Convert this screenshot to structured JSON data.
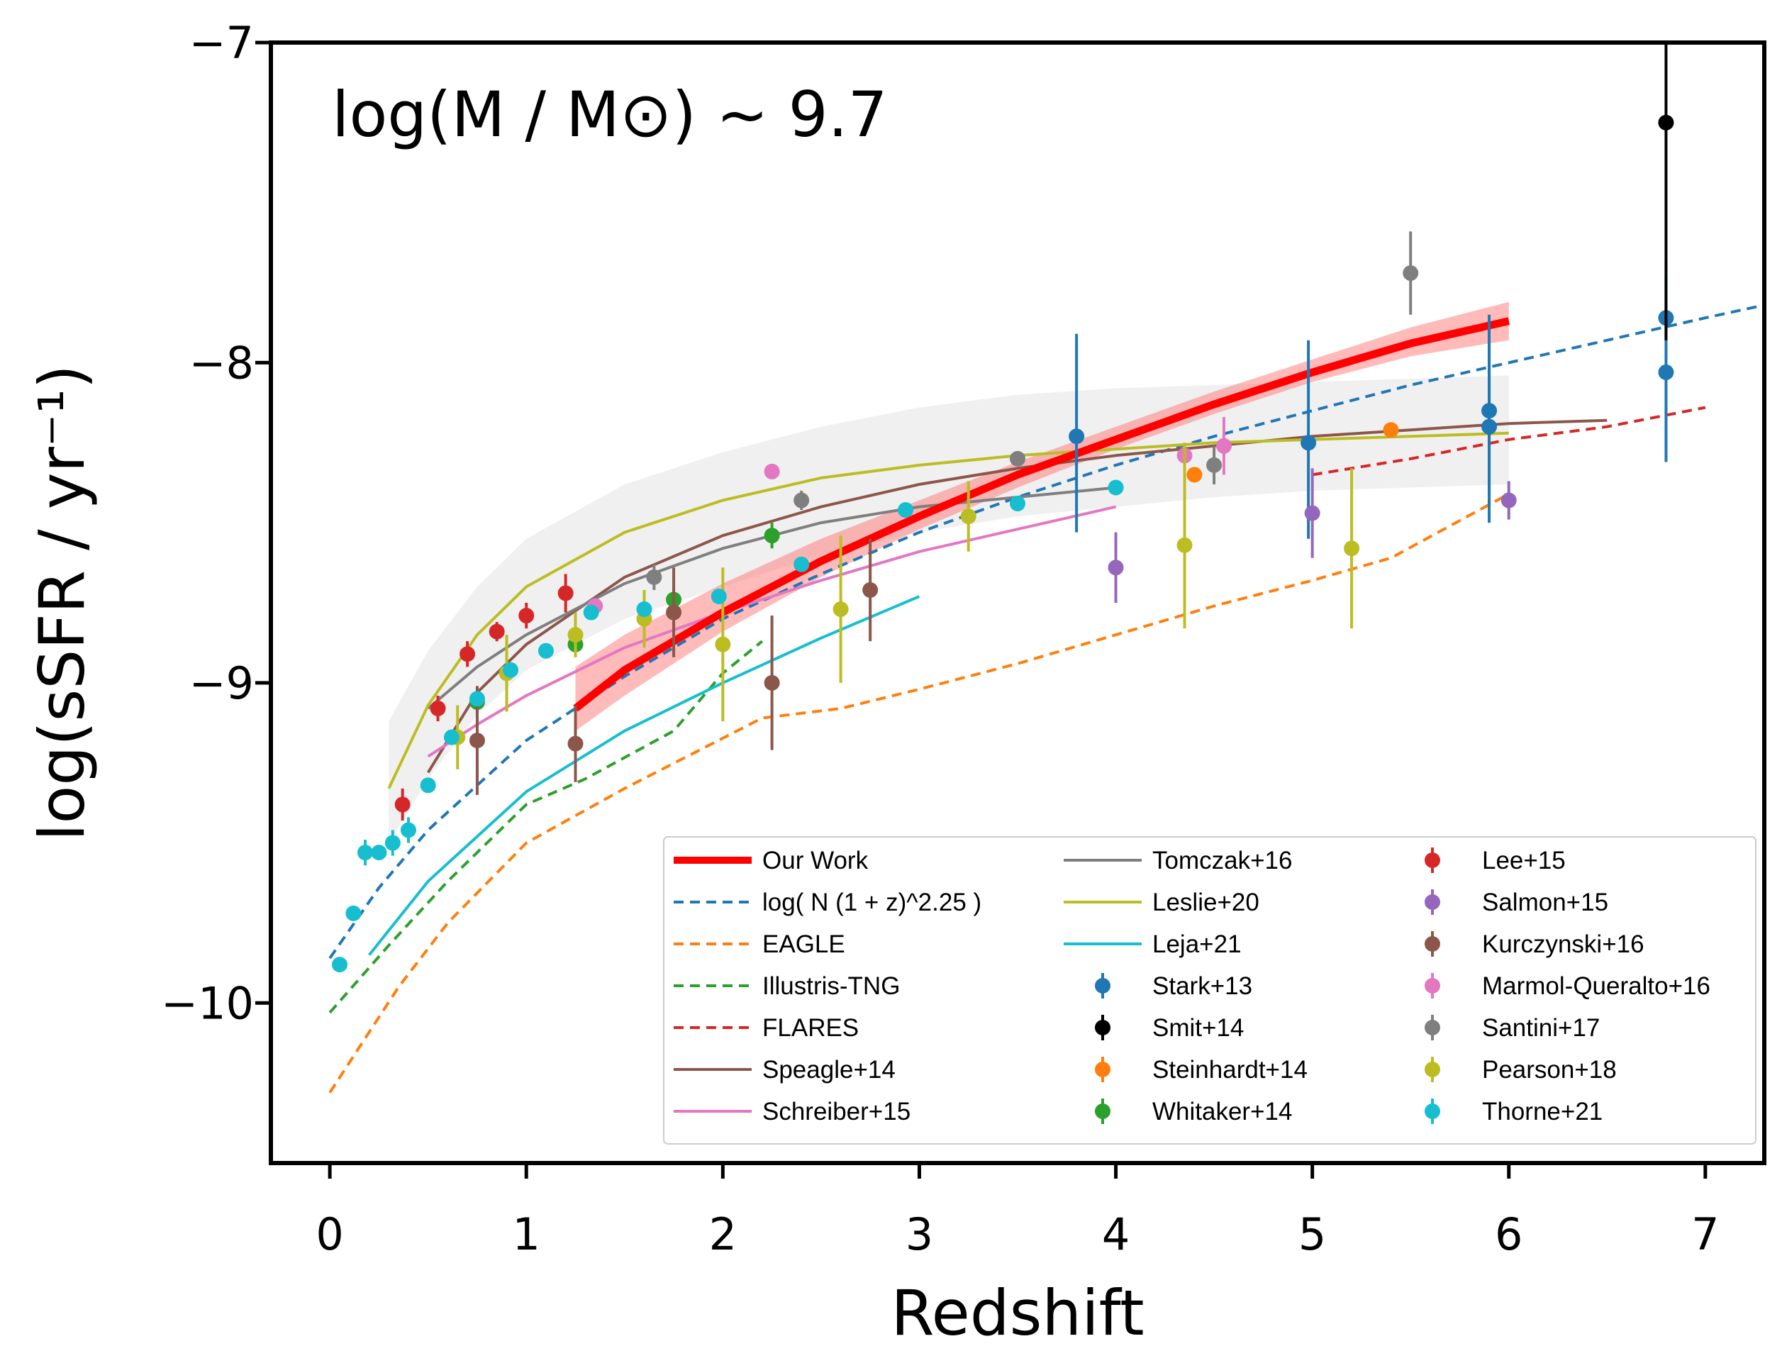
{
  "chart_data": {
    "type": "line",
    "annotation": "log(M / M⊙) ~ 9.7",
    "xlabel": "Redshift",
    "ylabel": "log(sSFR / yr⁻¹)",
    "xlim": [
      -0.3,
      7.3
    ],
    "ylim": [
      -10.5,
      -7.0
    ],
    "xticks": [
      0,
      1,
      2,
      3,
      4,
      5,
      6,
      7
    ],
    "yticks": [
      -10,
      -9,
      -8,
      -7
    ],
    "ytick_labels": [
      "−10",
      "−9",
      "−8",
      "−7"
    ],
    "grid": false,
    "legend_position": "lower-right",
    "bands": [
      {
        "name": "Speagle+14 scatter",
        "color": "#bbbbbb",
        "opacity": 0.22,
        "x": [
          0.3,
          0.5,
          0.75,
          1.0,
          1.5,
          2.0,
          2.5,
          3.0,
          3.5,
          4.0,
          4.5,
          5.0,
          5.5,
          6.0
        ],
        "upper": [
          -9.12,
          -8.9,
          -8.7,
          -8.55,
          -8.38,
          -8.28,
          -8.2,
          -8.14,
          -8.1,
          -8.08,
          -8.07,
          -8.06,
          -8.05,
          -8.04
        ],
        "lower": [
          -9.5,
          -9.3,
          -9.1,
          -8.96,
          -8.8,
          -8.7,
          -8.6,
          -8.53,
          -8.48,
          -8.45,
          -8.42,
          -8.4,
          -8.39,
          -8.38
        ]
      },
      {
        "name": "Our Work uncertainty",
        "color": "#ff6666",
        "opacity": 0.45,
        "x": [
          1.25,
          1.5,
          2.0,
          2.5,
          3.0,
          3.5,
          4.0,
          4.5,
          5.0,
          5.5,
          6.0
        ],
        "upper": [
          -8.95,
          -8.85,
          -8.69,
          -8.55,
          -8.43,
          -8.31,
          -8.2,
          -8.09,
          -7.99,
          -7.89,
          -7.81
        ],
        "lower": [
          -9.15,
          -9.04,
          -8.84,
          -8.67,
          -8.52,
          -8.39,
          -8.27,
          -8.16,
          -8.06,
          -7.98,
          -7.93
        ]
      }
    ],
    "lines": [
      {
        "name": "Our Work",
        "color": "#ff0000",
        "width": 11,
        "dash": "",
        "x": [
          1.25,
          1.5,
          2.0,
          2.5,
          3.0,
          3.5,
          4.0,
          4.5,
          5.0,
          5.5,
          6.0
        ],
        "y": [
          -9.08,
          -8.96,
          -8.78,
          -8.62,
          -8.48,
          -8.35,
          -8.24,
          -8.13,
          -8.03,
          -7.94,
          -7.87
        ]
      },
      {
        "name": "log( N (1 + z)^2.25 )",
        "color": "#1f77b4",
        "width": 4,
        "dash": "14,9",
        "x": [
          0.0,
          0.25,
          0.5,
          1.0,
          1.5,
          2.0,
          2.5,
          3.0,
          3.5,
          4.0,
          4.5,
          5.0,
          5.5,
          6.0,
          6.5,
          7.0,
          7.3
        ],
        "y": [
          -9.86,
          -9.64,
          -9.46,
          -9.18,
          -8.98,
          -8.8,
          -8.66,
          -8.53,
          -8.42,
          -8.32,
          -8.23,
          -8.15,
          -8.07,
          -8.0,
          -7.93,
          -7.86,
          -7.82
        ]
      },
      {
        "name": "EAGLE",
        "color": "#ff7f0e",
        "width": 4,
        "dash": "14,9",
        "x": [
          0.0,
          0.35,
          0.6,
          1.0,
          1.5,
          2.2,
          2.6,
          3.0,
          3.5,
          4.0,
          4.5,
          5.0,
          5.4,
          6.0
        ],
        "y": [
          -10.28,
          -9.95,
          -9.75,
          -9.5,
          -9.33,
          -9.11,
          -9.08,
          -9.02,
          -8.94,
          -8.85,
          -8.76,
          -8.68,
          -8.61,
          -8.41
        ]
      },
      {
        "name": "Illustris-TNG",
        "color": "#2ca02c",
        "width": 4,
        "dash": "14,9",
        "x": [
          0.0,
          0.3,
          0.6,
          1.0,
          1.3,
          1.75,
          2.0,
          2.2
        ],
        "y": [
          -10.03,
          -9.82,
          -9.62,
          -9.38,
          -9.3,
          -9.15,
          -8.97,
          -8.87
        ]
      },
      {
        "name": "FLARES",
        "color": "#d62728",
        "width": 4,
        "dash": "14,9",
        "x": [
          5.0,
          5.5,
          6.0,
          6.5,
          7.0
        ],
        "y": [
          -8.35,
          -8.3,
          -8.24,
          -8.2,
          -8.14
        ]
      },
      {
        "name": "Speagle+14",
        "color": "#8c564b",
        "width": 4,
        "dash": "",
        "x": [
          0.5,
          0.75,
          1.0,
          1.5,
          2.0,
          2.5,
          3.0,
          3.5,
          4.0,
          4.5,
          5.0,
          5.5,
          6.0,
          6.5
        ],
        "y": [
          -9.28,
          -9.03,
          -8.88,
          -8.67,
          -8.54,
          -8.45,
          -8.38,
          -8.33,
          -8.29,
          -8.26,
          -8.23,
          -8.21,
          -8.19,
          -8.18
        ]
      },
      {
        "name": "Schreiber+15",
        "color": "#e377c2",
        "width": 4,
        "dash": "",
        "x": [
          0.5,
          0.75,
          1.0,
          1.5,
          2.0,
          2.5,
          3.0,
          3.5,
          4.0
        ],
        "y": [
          -9.23,
          -9.13,
          -9.04,
          -8.89,
          -8.78,
          -8.68,
          -8.59,
          -8.52,
          -8.45
        ]
      },
      {
        "name": "Tomczak+16",
        "color": "#7f7f7f",
        "width": 4,
        "dash": "",
        "x": [
          0.5,
          0.75,
          1.0,
          1.5,
          2.0,
          2.5,
          3.0,
          3.5,
          4.0
        ],
        "y": [
          -9.08,
          -8.95,
          -8.85,
          -8.69,
          -8.58,
          -8.5,
          -8.45,
          -8.42,
          -8.39
        ]
      },
      {
        "name": "Leslie+20",
        "color": "#bcbd22",
        "width": 4,
        "dash": "",
        "x": [
          0.3,
          0.5,
          0.75,
          1.0,
          1.5,
          2.0,
          2.5,
          3.0,
          3.5,
          4.0,
          4.5,
          5.0,
          5.5,
          6.0
        ],
        "y": [
          -9.33,
          -9.07,
          -8.85,
          -8.7,
          -8.53,
          -8.43,
          -8.36,
          -8.32,
          -8.29,
          -8.27,
          -8.25,
          -8.24,
          -8.23,
          -8.22
        ]
      },
      {
        "name": "Leja+21",
        "color": "#17becf",
        "width": 4,
        "dash": "",
        "x": [
          0.2,
          0.5,
          1.0,
          1.5,
          2.0,
          2.5,
          3.0
        ],
        "y": [
          -9.85,
          -9.62,
          -9.34,
          -9.15,
          -9.0,
          -8.86,
          -8.73
        ]
      }
    ],
    "points": [
      {
        "name": "Stark+13",
        "color": "#1f77b4",
        "x": [
          3.8,
          4.98,
          5.9,
          5.9,
          6.8,
          6.8
        ],
        "y": [
          -8.23,
          -8.25,
          -8.15,
          -8.2,
          -8.03,
          -7.86
        ],
        "yerr_low": [
          0.3,
          0.3,
          0.3,
          0.3,
          0.28,
          0.06
        ],
        "yerr_high": [
          0.32,
          0.32,
          0.3,
          0.3,
          0.3,
          0.18
        ]
      },
      {
        "name": "Smit+14",
        "color": "#000000",
        "x": [
          6.8
        ],
        "y": [
          -7.25
        ],
        "yerr_low": [
          0.68
        ],
        "yerr_high": [
          0.25
        ]
      },
      {
        "name": "Steinhardt+14",
        "color": "#ff7f0e",
        "x": [
          4.4,
          5.4
        ],
        "y": [
          -8.35,
          -8.21
        ],
        "yerr_low": [
          0.02,
          0.02
        ],
        "yerr_high": [
          0.02,
          0.02
        ]
      },
      {
        "name": "Whitaker+14",
        "color": "#2ca02c",
        "x": [
          0.75,
          1.25,
          1.75,
          2.25
        ],
        "y": [
          -9.06,
          -8.88,
          -8.74,
          -8.54
        ],
        "yerr_low": [
          0.04,
          0.04,
          0.04,
          0.04
        ],
        "yerr_high": [
          0.04,
          0.04,
          0.04,
          0.04
        ]
      },
      {
        "name": "Lee+15",
        "color": "#d62728",
        "x": [
          0.37,
          0.55,
          0.7,
          0.85,
          1.0,
          1.2
        ],
        "y": [
          -9.38,
          -9.08,
          -8.91,
          -8.84,
          -8.79,
          -8.72
        ],
        "yerr_low": [
          0.05,
          0.04,
          0.04,
          0.03,
          0.04,
          0.06
        ],
        "yerr_high": [
          0.05,
          0.04,
          0.04,
          0.03,
          0.04,
          0.06
        ]
      },
      {
        "name": "Salmon+15",
        "color": "#9467bd",
        "x": [
          4.0,
          5.0,
          6.0
        ],
        "y": [
          -8.64,
          -8.47,
          -8.43
        ],
        "yerr_low": [
          0.11,
          0.14,
          0.06
        ],
        "yerr_high": [
          0.11,
          0.14,
          0.06
        ]
      },
      {
        "name": "Kurczynski+16",
        "color": "#8c564b",
        "x": [
          0.75,
          1.25,
          1.75,
          2.25,
          2.75
        ],
        "y": [
          -9.18,
          -9.19,
          -8.78,
          -9.0,
          -8.71
        ],
        "yerr_low": [
          0.17,
          0.12,
          0.14,
          0.21,
          0.16
        ],
        "yerr_high": [
          0.17,
          0.12,
          0.14,
          0.21,
          0.16
        ]
      },
      {
        "name": "Marmol-Queralto+16",
        "color": "#e377c2",
        "x": [
          1.35,
          2.25,
          4.35,
          4.55
        ],
        "y": [
          -8.76,
          -8.34,
          -8.29,
          -8.26
        ],
        "yerr_low": [
          0.02,
          0.02,
          0.03,
          0.09
        ],
        "yerr_high": [
          0.02,
          0.02,
          0.03,
          0.09
        ]
      },
      {
        "name": "Santini+17",
        "color": "#7f7f7f",
        "x": [
          1.65,
          2.4,
          3.5,
          4.5,
          5.5
        ],
        "y": [
          -8.67,
          -8.43,
          -8.3,
          -8.32,
          -7.72
        ],
        "yerr_low": [
          0.04,
          0.03,
          0.02,
          0.06,
          0.13
        ],
        "yerr_high": [
          0.04,
          0.03,
          0.02,
          0.06,
          0.13
        ]
      },
      {
        "name": "Pearson+18",
        "color": "#bcbd22",
        "x": [
          0.65,
          0.9,
          1.25,
          1.6,
          2.0,
          2.6,
          3.25,
          4.35,
          5.2
        ],
        "y": [
          -9.17,
          -8.97,
          -8.85,
          -8.8,
          -8.88,
          -8.77,
          -8.48,
          -8.57,
          -8.58
        ],
        "yerr_low": [
          0.1,
          0.12,
          0.07,
          0.09,
          0.24,
          0.23,
          0.11,
          0.26,
          0.25
        ],
        "yerr_high": [
          0.1,
          0.12,
          0.07,
          0.09,
          0.24,
          0.23,
          0.11,
          0.32,
          0.25
        ]
      },
      {
        "name": "Thorne+21",
        "color": "#17becf",
        "x": [
          0.05,
          0.12,
          0.18,
          0.25,
          0.32,
          0.4,
          0.5,
          0.62,
          0.75,
          0.92,
          1.1,
          1.33,
          1.6,
          1.98,
          2.4,
          2.93,
          3.5,
          4.0
        ],
        "y": [
          -9.88,
          -9.72,
          -9.53,
          -9.53,
          -9.5,
          -9.46,
          -9.32,
          -9.17,
          -9.05,
          -8.96,
          -8.9,
          -8.78,
          -8.77,
          -8.73,
          -8.63,
          -8.46,
          -8.44,
          -8.39
        ],
        "yerr_low": [
          0.02,
          0.02,
          0.04,
          0.02,
          0.04,
          0.04,
          0.02,
          0.02,
          0.02,
          0.02,
          0.02,
          0.02,
          0.02,
          0.02,
          0.02,
          0.02,
          0.02,
          0.02
        ],
        "yerr_high": [
          0.02,
          0.02,
          0.04,
          0.02,
          0.04,
          0.04,
          0.02,
          0.02,
          0.02,
          0.02,
          0.02,
          0.02,
          0.02,
          0.02,
          0.02,
          0.02,
          0.02,
          0.02
        ]
      }
    ],
    "legend": [
      {
        "label": "Our Work",
        "kind": "line",
        "color": "#ff0000"
      },
      {
        "label": "log( N (1 + z)^2.25 )",
        "kind": "dash",
        "color": "#1f77b4"
      },
      {
        "label": "EAGLE",
        "kind": "dash",
        "color": "#ff7f0e"
      },
      {
        "label": "Illustris-TNG",
        "kind": "dash",
        "color": "#2ca02c"
      },
      {
        "label": "FLARES",
        "kind": "dash",
        "color": "#d62728"
      },
      {
        "label": "Speagle+14",
        "kind": "line",
        "color": "#8c564b"
      },
      {
        "label": "Schreiber+15",
        "kind": "line",
        "color": "#e377c2"
      },
      {
        "label": "Tomczak+16",
        "kind": "line",
        "color": "#7f7f7f"
      },
      {
        "label": "Leslie+20",
        "kind": "line",
        "color": "#bcbd22"
      },
      {
        "label": "Leja+21",
        "kind": "line",
        "color": "#17becf"
      },
      {
        "label": "Stark+13",
        "kind": "point",
        "color": "#1f77b4"
      },
      {
        "label": "Smit+14",
        "kind": "point",
        "color": "#000000"
      },
      {
        "label": "Steinhardt+14",
        "kind": "point",
        "color": "#ff7f0e"
      },
      {
        "label": "Whitaker+14",
        "kind": "point",
        "color": "#2ca02c"
      },
      {
        "label": "Lee+15",
        "kind": "point",
        "color": "#d62728"
      },
      {
        "label": "Salmon+15",
        "kind": "point",
        "color": "#9467bd"
      },
      {
        "label": "Kurczynski+16",
        "kind": "point",
        "color": "#8c564b"
      },
      {
        "label": "Marmol-Queralto+16",
        "kind": "point",
        "color": "#e377c2"
      },
      {
        "label": "Santini+17",
        "kind": "point",
        "color": "#7f7f7f"
      },
      {
        "label": "Pearson+18",
        "kind": "point",
        "color": "#bcbd22"
      },
      {
        "label": "Thorne+21",
        "kind": "point",
        "color": "#17becf"
      }
    ]
  }
}
